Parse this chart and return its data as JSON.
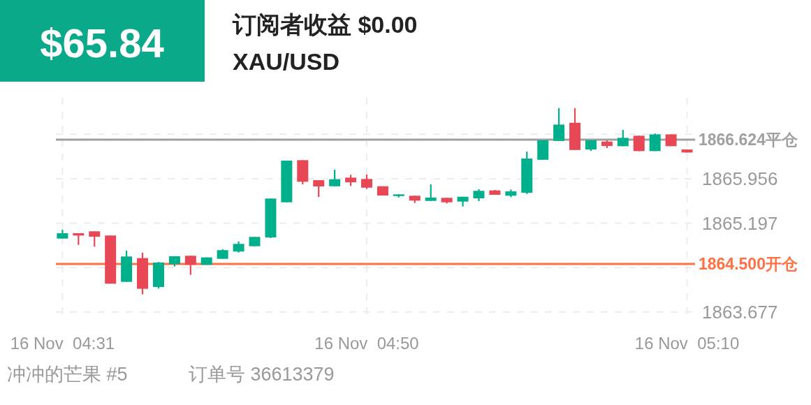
{
  "chart_data": {
    "type": "candlestick",
    "title": "$65.84",
    "subtitle": "订阅者收益 $0.00",
    "annotations": [
      "XAU/USD",
      "冲冲的芒果 #5",
      "订单号 36613379"
    ],
    "categories": [
      "16 Nov  04:31",
      null,
      null,
      null,
      null,
      null,
      null,
      null,
      null,
      null,
      null,
      null,
      null,
      null,
      null,
      null,
      null,
      null,
      null,
      "16 Nov  04:50",
      null,
      null,
      null,
      null,
      null,
      null,
      null,
      null,
      null,
      null,
      null,
      null,
      null,
      null,
      null,
      null,
      null,
      null,
      null,
      "16 Nov  05:10"
    ],
    "ohlc": [
      [
        1864.933,
        1865.084,
        1864.933,
        1865.025
      ],
      [
        1865.025,
        1865.025,
        1864.825,
        1864.985
      ],
      [
        1865.057,
        1865.057,
        1864.794,
        1864.965
      ],
      [
        1864.985,
        1864.985,
        1864.162,
        1864.162
      ],
      [
        1864.193,
        1864.726,
        1864.193,
        1864.627
      ],
      [
        1864.599,
        1864.691,
        1863.979,
        1864.074
      ],
      [
        1864.106,
        1864.532,
        1864.079,
        1864.524
      ],
      [
        1864.496,
        1864.631,
        1864.456,
        1864.631
      ],
      [
        1864.639,
        1864.639,
        1864.313,
        1864.484
      ],
      [
        1864.484,
        1864.611,
        1864.484,
        1864.611
      ],
      [
        1864.587,
        1864.75,
        1864.587,
        1864.735
      ],
      [
        1864.711,
        1864.885,
        1864.694,
        1864.842
      ],
      [
        1864.802,
        1864.961,
        1864.802,
        1864.961
      ],
      [
        1864.953,
        1865.617,
        1864.941,
        1865.617
      ],
      [
        1865.553,
        1866.265,
        1865.553,
        1866.265
      ],
      [
        1866.273,
        1866.273,
        1865.859,
        1865.904
      ],
      [
        1865.931,
        1865.931,
        1865.645,
        1865.824
      ],
      [
        1865.827,
        1866.11,
        1865.827,
        1865.947
      ],
      [
        1865.975,
        1866.023,
        1865.832,
        1865.895
      ],
      [
        1865.951,
        1866.026,
        1865.78,
        1865.803
      ],
      [
        1865.827,
        1865.827,
        1865.669,
        1865.669
      ],
      [
        1865.66,
        1865.689,
        1865.636,
        1865.689
      ],
      [
        1865.665,
        1865.665,
        1865.541,
        1865.582
      ],
      [
        1865.577,
        1865.859,
        1865.577,
        1865.633
      ],
      [
        1865.629,
        1865.629,
        1865.534,
        1865.553
      ],
      [
        1865.565,
        1865.648,
        1865.481,
        1865.648
      ],
      [
        1865.621,
        1865.776,
        1865.573,
        1865.749
      ],
      [
        1865.756,
        1865.764,
        1865.681,
        1865.681
      ],
      [
        1865.665,
        1865.772,
        1865.641,
        1865.74
      ],
      [
        1865.716,
        1866.42,
        1865.696,
        1866.301
      ],
      [
        1866.28,
        1866.614,
        1866.28,
        1866.614
      ],
      [
        1866.602,
        1867.163,
        1866.602,
        1866.881
      ],
      [
        1866.913,
        1867.163,
        1866.447,
        1866.447
      ],
      [
        1866.456,
        1866.614,
        1866.432,
        1866.614
      ],
      [
        1866.591,
        1866.611,
        1866.48,
        1866.515
      ],
      [
        1866.512,
        1866.79,
        1866.512,
        1866.655
      ],
      [
        1866.691,
        1866.691,
        1866.428,
        1866.428
      ],
      [
        1866.428,
        1866.73,
        1866.428,
        1866.714
      ],
      [
        1866.714,
        1866.714,
        1866.512,
        1866.512
      ],
      [
        1866.456,
        1866.456,
        1866.404,
        1866.404
      ]
    ],
    "colors": [
      "#00b08c",
      "#e84855",
      "#e84855",
      "#e84855",
      "#00b08c",
      "#e84855",
      "#00b08c",
      "#00b08c",
      "#e84855",
      "#00b08c",
      "#00b08c",
      "#00b08c",
      "#00b08c",
      "#00b08c",
      "#00b08c",
      "#e84855",
      "#e84855",
      "#00b08c",
      "#e84855",
      "#e84855",
      "#e84855",
      "#00b08c",
      "#e84855",
      "#00b08c",
      "#e84855",
      "#00b08c",
      "#00b08c",
      "#e84855",
      "#00b08c",
      "#00b08c",
      "#00b08c",
      "#00b08c",
      "#e84855",
      "#00b08c",
      "#e84855",
      "#00b08c",
      "#e84855",
      "#00b08c",
      "#e84855",
      "#e84855"
    ],
    "ylim": [
      1863.58,
      1867.34
    ],
    "yticks": [
      1863.677,
      {
        "value": 1864.437,
        "label": null
      },
      1865.197,
      1865.956,
      {
        "value": 1866.716,
        "label": null
      }
    ],
    "ref_lines": [
      {
        "axis": "y",
        "value": 1866.624,
        "label": "1866.624平仓",
        "color": "#a0a0a0"
      },
      {
        "axis": "y",
        "value": 1864.5,
        "label": "1864.500开仓",
        "color": "#ff7043"
      }
    ],
    "grid": true
  }
}
